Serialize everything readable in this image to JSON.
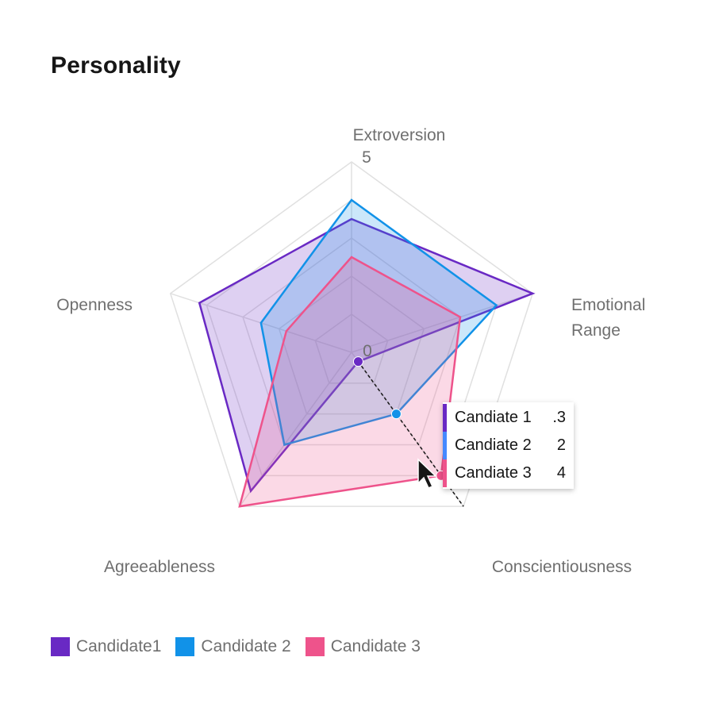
{
  "title": "Personality",
  "chart_data": {
    "type": "radar",
    "title": "Personality",
    "axes": [
      "Extroversion",
      "Emotional Range",
      "Conscientiousness",
      "Agreeableness",
      "Openness"
    ],
    "axis_label_lines": {
      "Extroversion": [
        "Extroversion"
      ],
      "Emotional Range": [
        "Emotional",
        "Range"
      ],
      "Conscientiousness": [
        "Conscientiousness"
      ],
      "Agreeableness": [
        "Agreeableness"
      ],
      "Openness": [
        "Openness"
      ]
    },
    "range": [
      0,
      5
    ],
    "tick_labels": {
      "min": "0",
      "max": "5"
    },
    "series": [
      {
        "name": "Candidate1",
        "color": "#6929c4",
        "values": [
          3.5,
          5.0,
          0.3,
          4.5,
          4.2
        ]
      },
      {
        "name": "Candidate 2",
        "color": "#1192e8",
        "values": [
          4.0,
          4.0,
          2.0,
          3.0,
          2.5
        ]
      },
      {
        "name": "Candidate 3",
        "color": "#ee538b",
        "values": [
          2.5,
          3.0,
          4.0,
          5.0,
          1.8
        ]
      }
    ],
    "legend_position": "bottom-left",
    "grid": true,
    "hover_axis": "Conscientiousness"
  },
  "tooltip": {
    "rows": [
      {
        "name": "Candiate 1",
        "value": ".3",
        "color": "#6929c4"
      },
      {
        "name": "Candiate 2",
        "value": "2",
        "color": "#4589ff"
      },
      {
        "name": "Candiate 3",
        "value": "4",
        "color": "#ee538b"
      }
    ]
  },
  "legend": [
    {
      "label": "Candidate1",
      "color": "#6929c4"
    },
    {
      "label": "Candidate 2",
      "color": "#1192e8"
    },
    {
      "label": "Candidate 3",
      "color": "#ee538b"
    }
  ]
}
